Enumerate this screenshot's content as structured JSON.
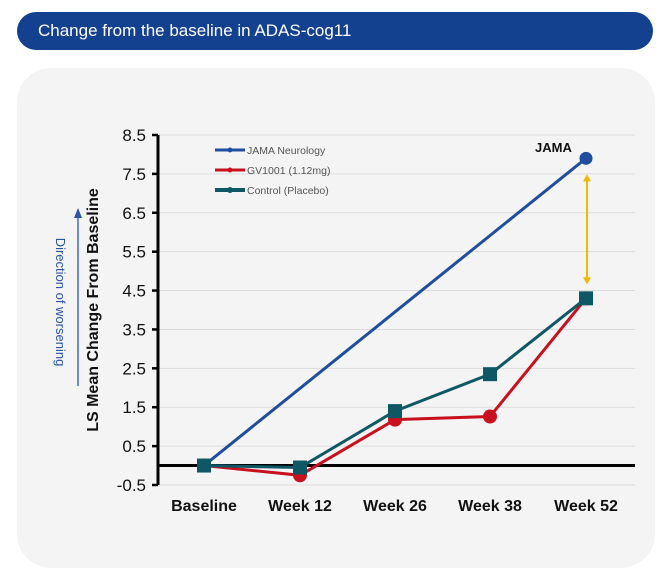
{
  "header": {
    "title": "Change from the baseline in ADAS-cog11"
  },
  "chart_data": {
    "type": "line",
    "title": "",
    "xlabel": "",
    "ylabel": "LS Mean Change From Baseline",
    "side_annotation": "Direction of worsening",
    "categories": [
      "Baseline",
      "Week 12",
      "Week 26",
      "Week 38",
      "Week 52"
    ],
    "ylim": [
      -0.5,
      8.5
    ],
    "yticks": [
      "8.5",
      "7.5",
      "6.5",
      "5.5",
      "4.5",
      "3.5",
      "2.5",
      "1.5",
      "0.5",
      "-0.5"
    ],
    "grid": true,
    "legend_position": "top-left",
    "series": [
      {
        "name": "JAMA Neurology",
        "color": "#1f4e9e",
        "marker": "circle",
        "points": [
          [
            0,
            0
          ],
          [
            4,
            7.9
          ]
        ]
      },
      {
        "name": "GV1001 (1.12mg)",
        "color": "#c8101e",
        "marker": "circle",
        "points": [
          [
            0,
            0
          ],
          [
            1,
            -0.25
          ],
          [
            2,
            1.18
          ],
          [
            3,
            1.26
          ],
          [
            4,
            4.3
          ]
        ]
      },
      {
        "name": "Control (Placebo)",
        "color": "#0e5866",
        "marker": "square",
        "points": [
          [
            0,
            0
          ],
          [
            1,
            -0.05
          ],
          [
            2,
            1.4
          ],
          [
            3,
            2.35
          ],
          [
            4,
            4.3
          ]
        ]
      }
    ],
    "annotations": [
      {
        "text": "JAMA"
      }
    ],
    "difference_arrow_color": "#f5b800"
  }
}
